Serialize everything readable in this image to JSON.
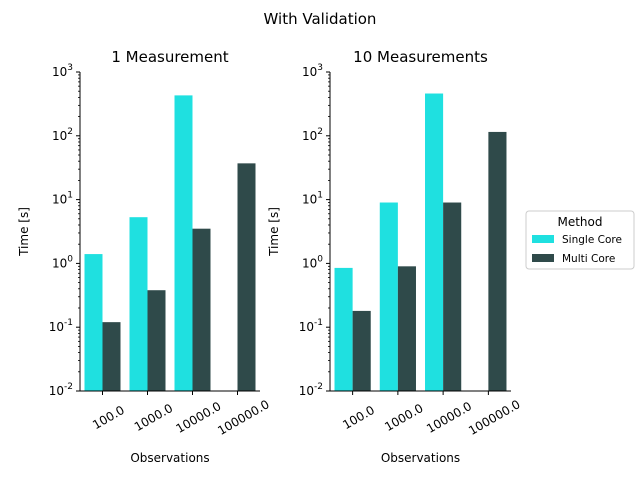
{
  "figure": {
    "title": "With Validation"
  },
  "legend": {
    "title": "Method",
    "placement": "right",
    "entries": [
      {
        "name": "Single Core",
        "color": "#1fe0e0"
      },
      {
        "name": "Multi Core",
        "color": "#2f4a4a"
      }
    ]
  },
  "chart_data": [
    {
      "type": "bar",
      "title": "1 Measurement",
      "xlabel": "Observations",
      "ylabel": "Time [s]",
      "yscale": "log",
      "ylim": [
        0.01,
        1000
      ],
      "yticks": [
        0.01,
        0.1,
        1,
        10,
        100,
        1000
      ],
      "categories": [
        "100.0",
        "1000.0",
        "10000.0",
        "100000.0"
      ],
      "series": [
        {
          "name": "Single Core",
          "color": "#1fe0e0",
          "values": [
            1.4,
            5.3,
            430,
            null
          ]
        },
        {
          "name": "Multi Core",
          "color": "#2f4a4a",
          "values": [
            0.12,
            0.38,
            3.5,
            37
          ]
        }
      ],
      "grid": false
    },
    {
      "type": "bar",
      "title": "10 Measurements",
      "xlabel": "Observations",
      "ylabel": "Time [s]",
      "yscale": "log",
      "ylim": [
        0.01,
        1000
      ],
      "yticks": [
        0.01,
        0.1,
        1,
        10,
        100,
        1000
      ],
      "categories": [
        "100.0",
        "1000.0",
        "10000.0",
        "100000.0"
      ],
      "series": [
        {
          "name": "Single Core",
          "color": "#1fe0e0",
          "values": [
            0.85,
            9.0,
            460,
            null
          ]
        },
        {
          "name": "Multi Core",
          "color": "#2f4a4a",
          "values": [
            0.18,
            0.9,
            9.0,
            115
          ]
        }
      ],
      "grid": false
    }
  ]
}
